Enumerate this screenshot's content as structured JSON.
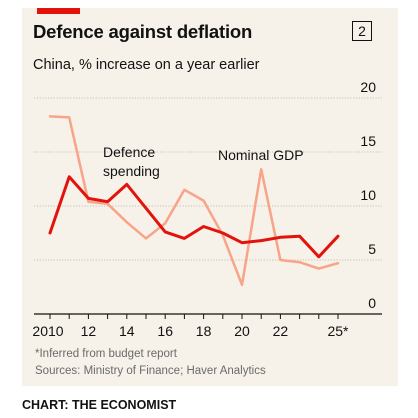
{
  "colors": {
    "accent": "#e3120b",
    "panel": "#f6f1e9",
    "defence": "#e3120b",
    "gdp": "#f8a488",
    "grid": "#b9b2a7",
    "text": "#121212",
    "muted": "#6b6b6b"
  },
  "badge": "2",
  "footnote": "*Inferred from budget report",
  "source": "Sources: Ministry of Finance; Haver Analytics",
  "credit": "CHART: THE ECONOMIST",
  "chart_data": {
    "type": "line",
    "title": "Defence against deflation",
    "subtitle": "China, % increase on a year earlier",
    "ylim": [
      0,
      20
    ],
    "yticks": [
      0,
      5,
      10,
      15,
      20
    ],
    "xlim": [
      2010,
      2025.8
    ],
    "xticks": [
      {
        "value": 2010,
        "label": "2010"
      },
      {
        "value": 2012,
        "label": "12"
      },
      {
        "value": 2014,
        "label": "14"
      },
      {
        "value": 2016,
        "label": "16"
      },
      {
        "value": 2018,
        "label": "18"
      },
      {
        "value": 2020,
        "label": "20"
      },
      {
        "value": 2022,
        "label": "22"
      },
      {
        "value": 2025,
        "label": "25*"
      }
    ],
    "grid": true,
    "series": [
      {
        "name": "Nominal GDP",
        "label_lines": [
          "Nominal GDP"
        ],
        "color": "#f8a488",
        "x": [
          2010,
          2011,
          2012,
          2013,
          2014,
          2015,
          2016,
          2017,
          2018,
          2019,
          2020,
          2021,
          2022,
          2023,
          2024,
          2025
        ],
        "values": [
          18.3,
          18.2,
          10.4,
          10.2,
          8.5,
          7.0,
          8.4,
          11.5,
          10.5,
          7.3,
          2.7,
          13.4,
          5.0,
          4.8,
          4.2,
          4.7
        ]
      },
      {
        "name": "Defence spending",
        "label_lines": [
          "Defence",
          "spending"
        ],
        "color": "#e3120b",
        "x": [
          2010,
          2011,
          2012,
          2013,
          2014,
          2015,
          2016,
          2017,
          2018,
          2019,
          2020,
          2021,
          2022,
          2023,
          2024,
          2025
        ],
        "values": [
          7.5,
          12.7,
          10.7,
          10.4,
          12.0,
          9.8,
          7.6,
          7.0,
          8.1,
          7.5,
          6.6,
          6.8,
          7.1,
          7.2,
          5.3,
          7.2
        ]
      }
    ]
  }
}
